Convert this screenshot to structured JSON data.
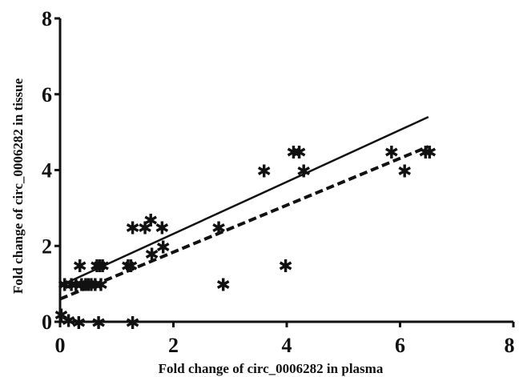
{
  "chart_data": {
    "type": "scatter",
    "xlabel": "Fold change of circ_0006282 in plasma",
    "ylabel": "Fold change of circ_0006282 in tissue",
    "xlim": [
      0,
      8
    ],
    "ylim": [
      0,
      8
    ],
    "xticks": [
      0,
      2,
      4,
      6,
      8
    ],
    "yticks": [
      0,
      2,
      4,
      6,
      8
    ],
    "xtick_labels": [
      "0",
      "2",
      "4",
      "6",
      "8"
    ],
    "ytick_labels": [
      "0",
      "2",
      "4",
      "6",
      "8"
    ],
    "grid": false,
    "marker": "asterisk",
    "points": [
      {
        "x": 0.02,
        "y": 0.2
      },
      {
        "x": 0.08,
        "y": 1.0
      },
      {
        "x": 0.15,
        "y": 0.05
      },
      {
        "x": 0.2,
        "y": 1.0
      },
      {
        "x": 0.28,
        "y": 1.0
      },
      {
        "x": 0.33,
        "y": 0.0
      },
      {
        "x": 0.35,
        "y": 1.5
      },
      {
        "x": 0.38,
        "y": 1.0
      },
      {
        "x": 0.45,
        "y": 1.0
      },
      {
        "x": 0.5,
        "y": 1.0
      },
      {
        "x": 0.55,
        "y": 1.0
      },
      {
        "x": 0.62,
        "y": 1.0
      },
      {
        "x": 0.65,
        "y": 1.5
      },
      {
        "x": 0.68,
        "y": 0.0
      },
      {
        "x": 0.7,
        "y": 1.5
      },
      {
        "x": 0.75,
        "y": 1.5
      },
      {
        "x": 0.72,
        "y": 1.0
      },
      {
        "x": 1.2,
        "y": 1.5
      },
      {
        "x": 1.25,
        "y": 1.5
      },
      {
        "x": 1.28,
        "y": 2.5
      },
      {
        "x": 1.28,
        "y": 0.0
      },
      {
        "x": 1.5,
        "y": 2.5
      },
      {
        "x": 1.6,
        "y": 2.7
      },
      {
        "x": 1.62,
        "y": 1.8
      },
      {
        "x": 1.8,
        "y": 2.5
      },
      {
        "x": 1.82,
        "y": 2.0
      },
      {
        "x": 2.8,
        "y": 2.5
      },
      {
        "x": 2.88,
        "y": 1.0
      },
      {
        "x": 3.6,
        "y": 4.0
      },
      {
        "x": 3.98,
        "y": 1.5
      },
      {
        "x": 4.12,
        "y": 4.5
      },
      {
        "x": 4.22,
        "y": 4.5
      },
      {
        "x": 4.3,
        "y": 4.0
      },
      {
        "x": 5.85,
        "y": 4.5
      },
      {
        "x": 6.08,
        "y": 4.0
      },
      {
        "x": 6.45,
        "y": 4.5
      },
      {
        "x": 6.52,
        "y": 4.5
      }
    ],
    "lines": [
      {
        "style": "solid",
        "x": [
          0,
          6.5
        ],
        "y": [
          0.95,
          5.4
        ]
      },
      {
        "style": "dashed",
        "x": [
          0,
          6.5
        ],
        "y": [
          0.6,
          4.62
        ]
      }
    ]
  }
}
